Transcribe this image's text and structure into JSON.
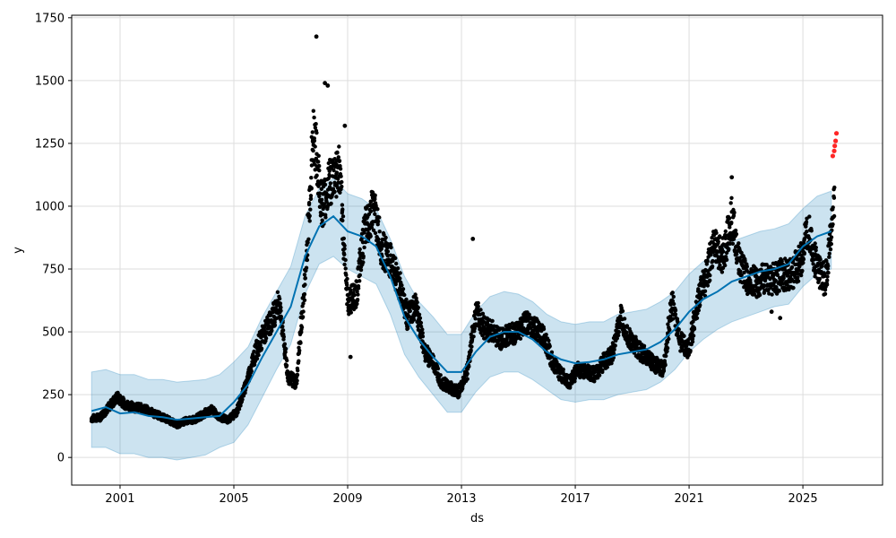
{
  "chart_data": {
    "type": "scatter",
    "title": "",
    "xlabel": "ds",
    "ylabel": "y",
    "xlim": [
      1999.3,
      2027.8
    ],
    "ylim": [
      -110,
      1760
    ],
    "x_ticks": [
      2001,
      2005,
      2009,
      2013,
      2017,
      2021,
      2025
    ],
    "x_tick_labels": [
      "2001",
      "2005",
      "2009",
      "2013",
      "2017",
      "2021",
      "2025"
    ],
    "y_ticks": [
      0,
      250,
      500,
      750,
      1000,
      1250,
      1500,
      1750
    ],
    "y_tick_labels": [
      "0",
      "250",
      "500",
      "750",
      "1000",
      "1250",
      "1500",
      "1750"
    ],
    "grid": true,
    "legend": "none",
    "colors": {
      "observed": "#000000",
      "highlight": "#ff0000",
      "forecast_line": "#0072B2",
      "uncertainty_band": "#0072B2"
    },
    "forecast": {
      "x": [
        2000.0,
        2000.5,
        2001.0,
        2001.5,
        2002.0,
        2002.5,
        2003.0,
        2003.5,
        2004.0,
        2004.5,
        2005.0,
        2005.5,
        2006.0,
        2006.5,
        2007.0,
        2007.5,
        2008.0,
        2008.5,
        2009.0,
        2009.5,
        2010.0,
        2010.5,
        2011.0,
        2011.5,
        2012.0,
        2012.5,
        2013.0,
        2013.5,
        2014.0,
        2014.5,
        2015.0,
        2015.5,
        2016.0,
        2016.5,
        2017.0,
        2017.5,
        2018.0,
        2018.5,
        2019.0,
        2019.5,
        2020.0,
        2020.5,
        2021.0,
        2021.5,
        2022.0,
        2022.5,
        2023.0,
        2023.5,
        2024.0,
        2024.5,
        2025.0,
        2025.5,
        2026.0
      ],
      "yhat": [
        185,
        200,
        175,
        180,
        165,
        160,
        150,
        155,
        160,
        165,
        220,
        290,
        400,
        500,
        600,
        800,
        920,
        960,
        900,
        880,
        840,
        720,
        560,
        470,
        400,
        340,
        340,
        420,
        480,
        500,
        500,
        470,
        420,
        390,
        375,
        380,
        390,
        410,
        420,
        430,
        460,
        510,
        580,
        630,
        660,
        700,
        720,
        740,
        750,
        770,
        840,
        880,
        900
      ],
      "lower": [
        40,
        40,
        15,
        15,
        0,
        0,
        -10,
        0,
        10,
        40,
        60,
        130,
        240,
        350,
        450,
        650,
        770,
        800,
        750,
        720,
        690,
        570,
        410,
        320,
        250,
        180,
        180,
        260,
        320,
        340,
        340,
        310,
        270,
        230,
        220,
        230,
        230,
        250,
        260,
        270,
        300,
        350,
        420,
        470,
        510,
        540,
        560,
        580,
        600,
        610,
        680,
        730,
        750
      ],
      "upper": [
        340,
        350,
        330,
        330,
        310,
        310,
        300,
        305,
        310,
        330,
        380,
        440,
        560,
        660,
        760,
        960,
        1070,
        1110,
        1050,
        1030,
        990,
        870,
        720,
        620,
        560,
        490,
        490,
        580,
        640,
        660,
        650,
        620,
        570,
        540,
        530,
        540,
        540,
        570,
        580,
        590,
        620,
        660,
        730,
        780,
        820,
        860,
        880,
        900,
        910,
        930,
        990,
        1040,
        1060
      ]
    },
    "observed": {
      "x": [
        2000.0,
        2000.3,
        2000.6,
        2000.9,
        2001.2,
        2001.5,
        2001.8,
        2002.1,
        2002.4,
        2002.7,
        2003.0,
        2003.3,
        2003.6,
        2003.9,
        2004.2,
        2004.5,
        2004.8,
        2005.1,
        2005.4,
        2005.7,
        2006.0,
        2006.3,
        2006.6,
        2006.9,
        2007.2,
        2007.5,
        2007.8,
        2008.1,
        2008.4,
        2008.7,
        2009.0,
        2009.3,
        2009.6,
        2009.9,
        2010.2,
        2010.5,
        2010.8,
        2011.1,
        2011.4,
        2011.7,
        2012.0,
        2012.3,
        2012.6,
        2012.9,
        2013.2,
        2013.5,
        2013.8,
        2014.1,
        2014.4,
        2014.7,
        2015.0,
        2015.3,
        2015.6,
        2015.9,
        2016.2,
        2016.5,
        2016.8,
        2017.1,
        2017.4,
        2017.7,
        2018.0,
        2018.3,
        2018.6,
        2018.9,
        2019.2,
        2019.5,
        2019.8,
        2020.1,
        2020.4,
        2020.7,
        2021.0,
        2021.3,
        2021.6,
        2021.9,
        2022.2,
        2022.5,
        2022.8,
        2023.1,
        2023.4,
        2023.7,
        2024.0,
        2024.3,
        2024.6,
        2024.9,
        2025.2,
        2025.5,
        2025.8,
        2026.1
      ],
      "y": [
        155,
        160,
        200,
        240,
        210,
        200,
        195,
        180,
        165,
        150,
        130,
        145,
        150,
        170,
        190,
        160,
        150,
        180,
        280,
        400,
        480,
        540,
        620,
        320,
        300,
        700,
        1300,
        1000,
        1100,
        1150,
        620,
        650,
        900,
        1000,
        830,
        780,
        700,
        560,
        600,
        420,
        380,
        300,
        280,
        260,
        340,
        580,
        520,
        500,
        470,
        490,
        500,
        540,
        510,
        480,
        380,
        330,
        300,
        350,
        340,
        330,
        380,
        410,
        560,
        470,
        430,
        400,
        370,
        350,
        620,
        460,
        430,
        620,
        720,
        850,
        800,
        950,
        760,
        700,
        700,
        710,
        710,
        730,
        730,
        780,
        900,
        750,
        700,
        1000
      ]
    },
    "highlighted": {
      "x": [
        2026.05,
        2026.1,
        2026.12,
        2026.15,
        2026.18
      ],
      "y": [
        1200,
        1220,
        1240,
        1260,
        1290
      ]
    },
    "extremes": {
      "x": [
        2007.9,
        2008.2,
        2008.3,
        2008.9,
        2009.1,
        2013.4,
        2022.5,
        2023.9,
        2024.2
      ],
      "y": [
        1675,
        1490,
        1480,
        1320,
        400,
        870,
        1115,
        580,
        555
      ]
    }
  }
}
